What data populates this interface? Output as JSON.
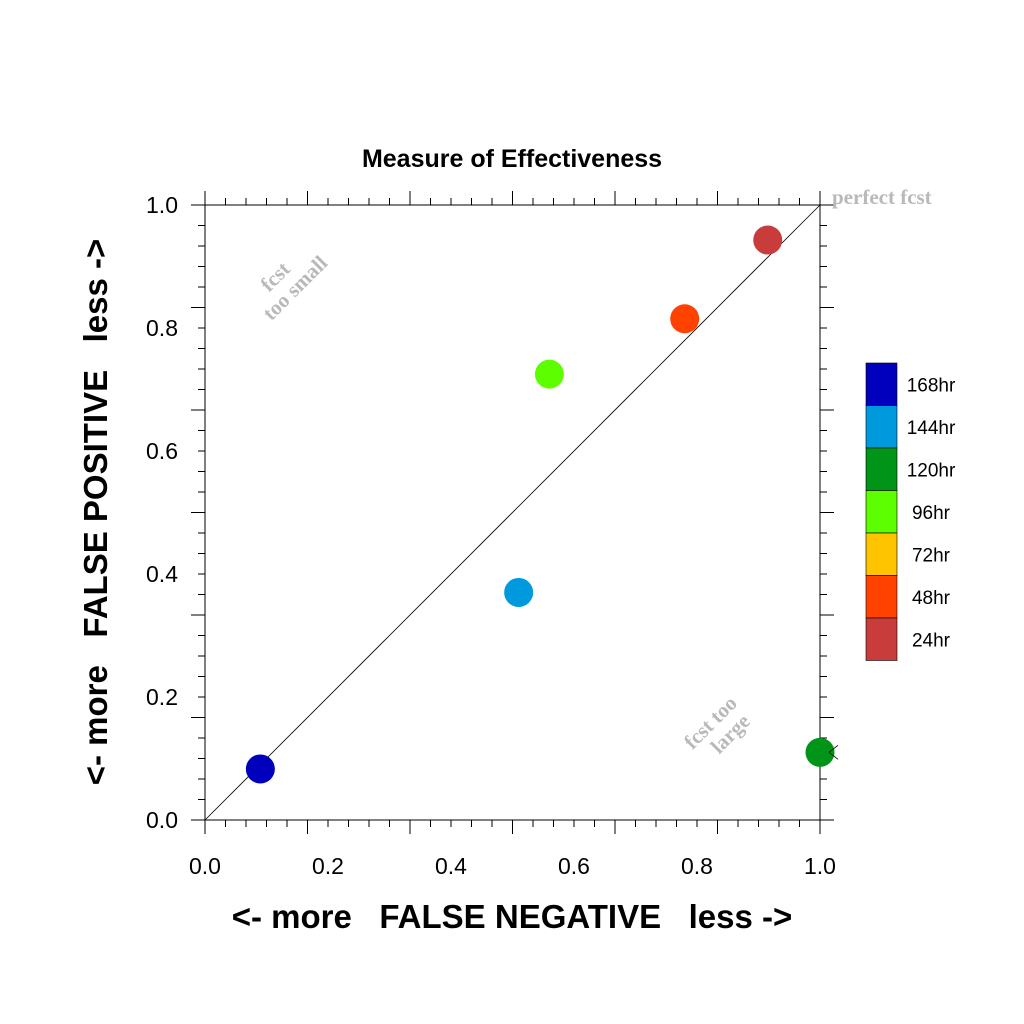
{
  "chart_data": {
    "type": "scatter",
    "title": "Measure of Effectiveness",
    "xlabel": "<- more   FALSE NEGATIVE   less ->",
    "ylabel": "<- more   FALSE POSITIVE   less ->",
    "xlim": [
      0.0,
      1.0
    ],
    "ylim": [
      0.0,
      1.0
    ],
    "xticks": [
      "0.0",
      "0.2",
      "0.4",
      "0.6",
      "0.8",
      "1.0"
    ],
    "yticks": [
      "0.0",
      "0.2",
      "0.4",
      "0.6",
      "0.8",
      "1.0"
    ],
    "grid": false,
    "diagonal_line": true,
    "annotations": {
      "perfect": "perfect fcst",
      "small_line1": "fcst",
      "small_line2": "too small",
      "large_line1": "fcst too",
      "large_line2": "large"
    },
    "legend": {
      "placement": "right",
      "entries": [
        {
          "label": "168hr",
          "color": "#0000bd"
        },
        {
          "label": "144hr",
          "color": "#0099de"
        },
        {
          "label": "120hr",
          "color": "#009418"
        },
        {
          "label": "96hr",
          "color": "#5dff00"
        },
        {
          "label": "72hr",
          "color": "#ffc400"
        },
        {
          "label": "48hr",
          "color": "#ff4200"
        },
        {
          "label": "24hr",
          "color": "#c93c3c"
        }
      ]
    },
    "points": [
      {
        "series": "168hr",
        "x": 0.09,
        "y": 0.083,
        "color": "#0000bd"
      },
      {
        "series": "144hr",
        "x": 0.51,
        "y": 0.37,
        "color": "#0099de"
      },
      {
        "series": "120hr",
        "x": 1.0,
        "y": 0.11,
        "color": "#009418"
      },
      {
        "series": "96hr",
        "x": 0.56,
        "y": 0.725,
        "color": "#5dff00"
      },
      {
        "series": "48hr",
        "x": 0.78,
        "y": 0.815,
        "color": "#ff4200"
      },
      {
        "series": "24hr",
        "x": 0.915,
        "y": 0.943,
        "color": "#c93c3c"
      }
    ]
  }
}
